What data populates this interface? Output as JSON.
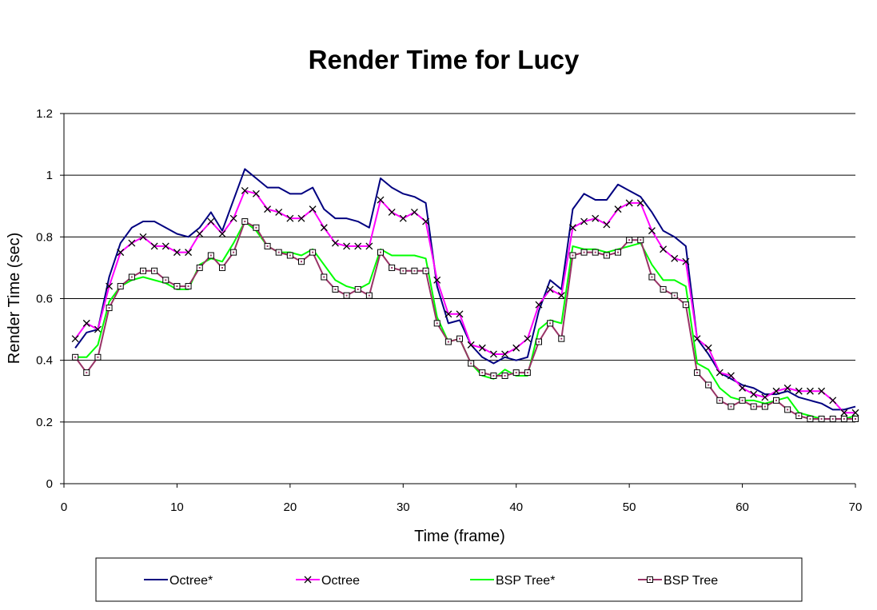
{
  "chart_data": {
    "type": "line",
    "title": "Render Time for Lucy",
    "xlabel": "Time (frame)",
    "ylabel": "Render Time (sec)",
    "xlim": [
      0,
      70
    ],
    "ylim": [
      0,
      1.2
    ],
    "xticks": [
      "0",
      "10",
      "20",
      "30",
      "40",
      "50",
      "60",
      "70"
    ],
    "yticks": [
      "0",
      "0.2",
      "0.4",
      "0.6",
      "0.8",
      "1",
      "1.2"
    ],
    "grid": "horizontal",
    "legend_position": "bottom",
    "x": [
      1,
      2,
      3,
      4,
      5,
      6,
      7,
      8,
      9,
      10,
      11,
      12,
      13,
      14,
      15,
      16,
      17,
      18,
      19,
      20,
      21,
      22,
      23,
      24,
      25,
      26,
      27,
      28,
      29,
      30,
      31,
      32,
      33,
      34,
      35,
      36,
      37,
      38,
      39,
      40,
      41,
      42,
      43,
      44,
      45,
      46,
      47,
      48,
      49,
      50,
      51,
      52,
      53,
      54,
      55,
      56,
      57,
      58,
      59,
      60,
      61,
      62,
      63,
      64,
      65,
      66,
      67,
      68,
      69,
      70
    ],
    "series": [
      {
        "name": "Octree*",
        "color": "#000080",
        "marker": "none",
        "values": [
          0.44,
          0.49,
          0.5,
          0.67,
          0.78,
          0.83,
          0.85,
          0.85,
          0.83,
          0.81,
          0.8,
          0.83,
          0.88,
          0.82,
          0.92,
          1.02,
          0.99,
          0.96,
          0.96,
          0.94,
          0.94,
          0.96,
          0.89,
          0.86,
          0.86,
          0.85,
          0.83,
          0.99,
          0.96,
          0.94,
          0.93,
          0.91,
          0.64,
          0.52,
          0.53,
          0.45,
          0.41,
          0.39,
          0.41,
          0.4,
          0.41,
          0.56,
          0.66,
          0.63,
          0.89,
          0.94,
          0.92,
          0.92,
          0.97,
          0.95,
          0.93,
          0.88,
          0.82,
          0.8,
          0.77,
          0.47,
          0.42,
          0.36,
          0.34,
          0.32,
          0.31,
          0.29,
          0.29,
          0.3,
          0.28,
          0.27,
          0.26,
          0.24,
          0.24,
          0.25
        ]
      },
      {
        "name": "Octree",
        "color": "#ff00ff",
        "marker": "x",
        "values": [
          0.47,
          0.52,
          0.5,
          0.64,
          0.75,
          0.78,
          0.8,
          0.77,
          0.77,
          0.75,
          0.75,
          0.81,
          0.85,
          0.81,
          0.86,
          0.95,
          0.94,
          0.89,
          0.88,
          0.86,
          0.86,
          0.89,
          0.83,
          0.78,
          0.77,
          0.77,
          0.77,
          0.92,
          0.88,
          0.86,
          0.88,
          0.85,
          0.66,
          0.55,
          0.55,
          0.45,
          0.44,
          0.42,
          0.42,
          0.44,
          0.47,
          0.58,
          0.63,
          0.61,
          0.83,
          0.85,
          0.86,
          0.84,
          0.89,
          0.91,
          0.91,
          0.82,
          0.76,
          0.73,
          0.72,
          0.47,
          0.44,
          0.36,
          0.35,
          0.31,
          0.29,
          0.28,
          0.3,
          0.31,
          0.3,
          0.3,
          0.3,
          0.27,
          0.23,
          0.23
        ]
      },
      {
        "name": "BSP Tree*",
        "color": "#00ff00",
        "marker": "none",
        "values": [
          0.41,
          0.41,
          0.45,
          0.59,
          0.64,
          0.66,
          0.67,
          0.66,
          0.65,
          0.63,
          0.63,
          0.71,
          0.73,
          0.72,
          0.78,
          0.85,
          0.82,
          0.77,
          0.75,
          0.75,
          0.74,
          0.76,
          0.71,
          0.66,
          0.64,
          0.63,
          0.65,
          0.76,
          0.74,
          0.74,
          0.74,
          0.73,
          0.54,
          0.46,
          0.47,
          0.39,
          0.35,
          0.34,
          0.37,
          0.35,
          0.35,
          0.5,
          0.53,
          0.52,
          0.77,
          0.76,
          0.76,
          0.75,
          0.76,
          0.77,
          0.78,
          0.71,
          0.66,
          0.66,
          0.64,
          0.39,
          0.37,
          0.31,
          0.28,
          0.27,
          0.27,
          0.26,
          0.27,
          0.28,
          0.23,
          0.22,
          0.21,
          0.21,
          0.21,
          0.22
        ]
      },
      {
        "name": "BSP Tree",
        "color": "#993366",
        "marker": "square",
        "values": [
          0.41,
          0.36,
          0.41,
          0.57,
          0.64,
          0.67,
          0.69,
          0.69,
          0.66,
          0.64,
          0.64,
          0.7,
          0.74,
          0.7,
          0.75,
          0.85,
          0.83,
          0.77,
          0.75,
          0.74,
          0.72,
          0.75,
          0.67,
          0.63,
          0.61,
          0.63,
          0.61,
          0.75,
          0.7,
          0.69,
          0.69,
          0.69,
          0.52,
          0.46,
          0.47,
          0.39,
          0.36,
          0.35,
          0.35,
          0.36,
          0.36,
          0.46,
          0.52,
          0.47,
          0.74,
          0.75,
          0.75,
          0.74,
          0.75,
          0.79,
          0.79,
          0.67,
          0.63,
          0.61,
          0.58,
          0.36,
          0.32,
          0.27,
          0.25,
          0.27,
          0.25,
          0.25,
          0.27,
          0.24,
          0.22,
          0.21,
          0.21,
          0.21,
          0.21,
          0.21
        ]
      }
    ]
  }
}
